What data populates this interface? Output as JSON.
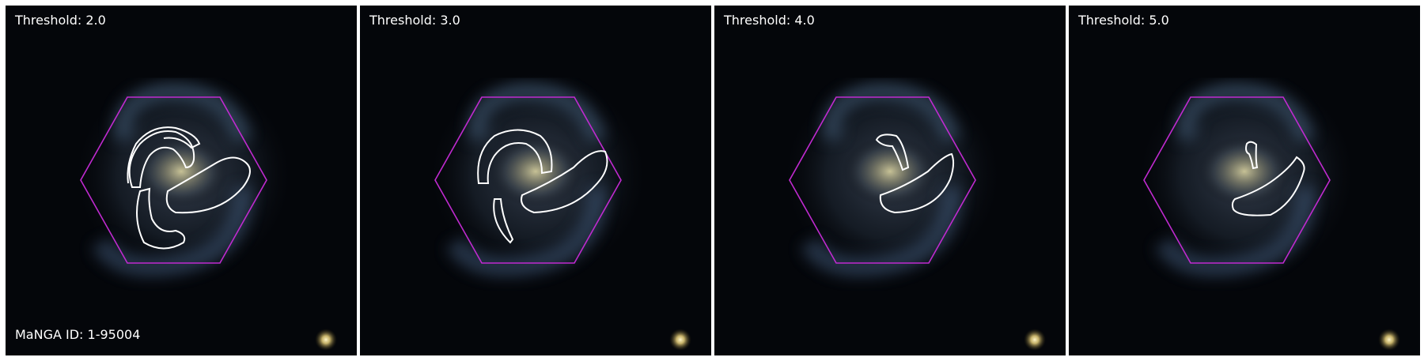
{
  "panels": [
    {
      "threshold_label": "Threshold: 2.0"
    },
    {
      "threshold_label": "Threshold: 3.0"
    },
    {
      "threshold_label": "Threshold: 4.0"
    },
    {
      "threshold_label": "Threshold: 5.0"
    }
  ],
  "manga_id_label": "MaNGA ID: 1-95004",
  "colors": {
    "background": "#04060a",
    "hexagon": "#c02ad0",
    "contour": "#ffffff",
    "galaxy_core": "#b9b58a",
    "galaxy_arms": "#5c6f86",
    "foreground_star": "#ffe9a0"
  }
}
